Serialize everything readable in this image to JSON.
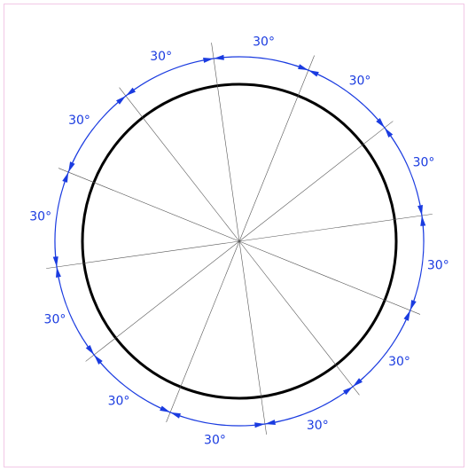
{
  "dimensions": [
    {
      "label": "30°"
    },
    {
      "label": "30°"
    },
    {
      "label": "30°"
    },
    {
      "label": "30°"
    },
    {
      "label": "30°"
    },
    {
      "label": "30°"
    },
    {
      "label": "30°"
    },
    {
      "label": "30°"
    },
    {
      "label": "30°"
    },
    {
      "label": "30°"
    },
    {
      "label": "30°"
    },
    {
      "label": "30°"
    }
  ]
}
